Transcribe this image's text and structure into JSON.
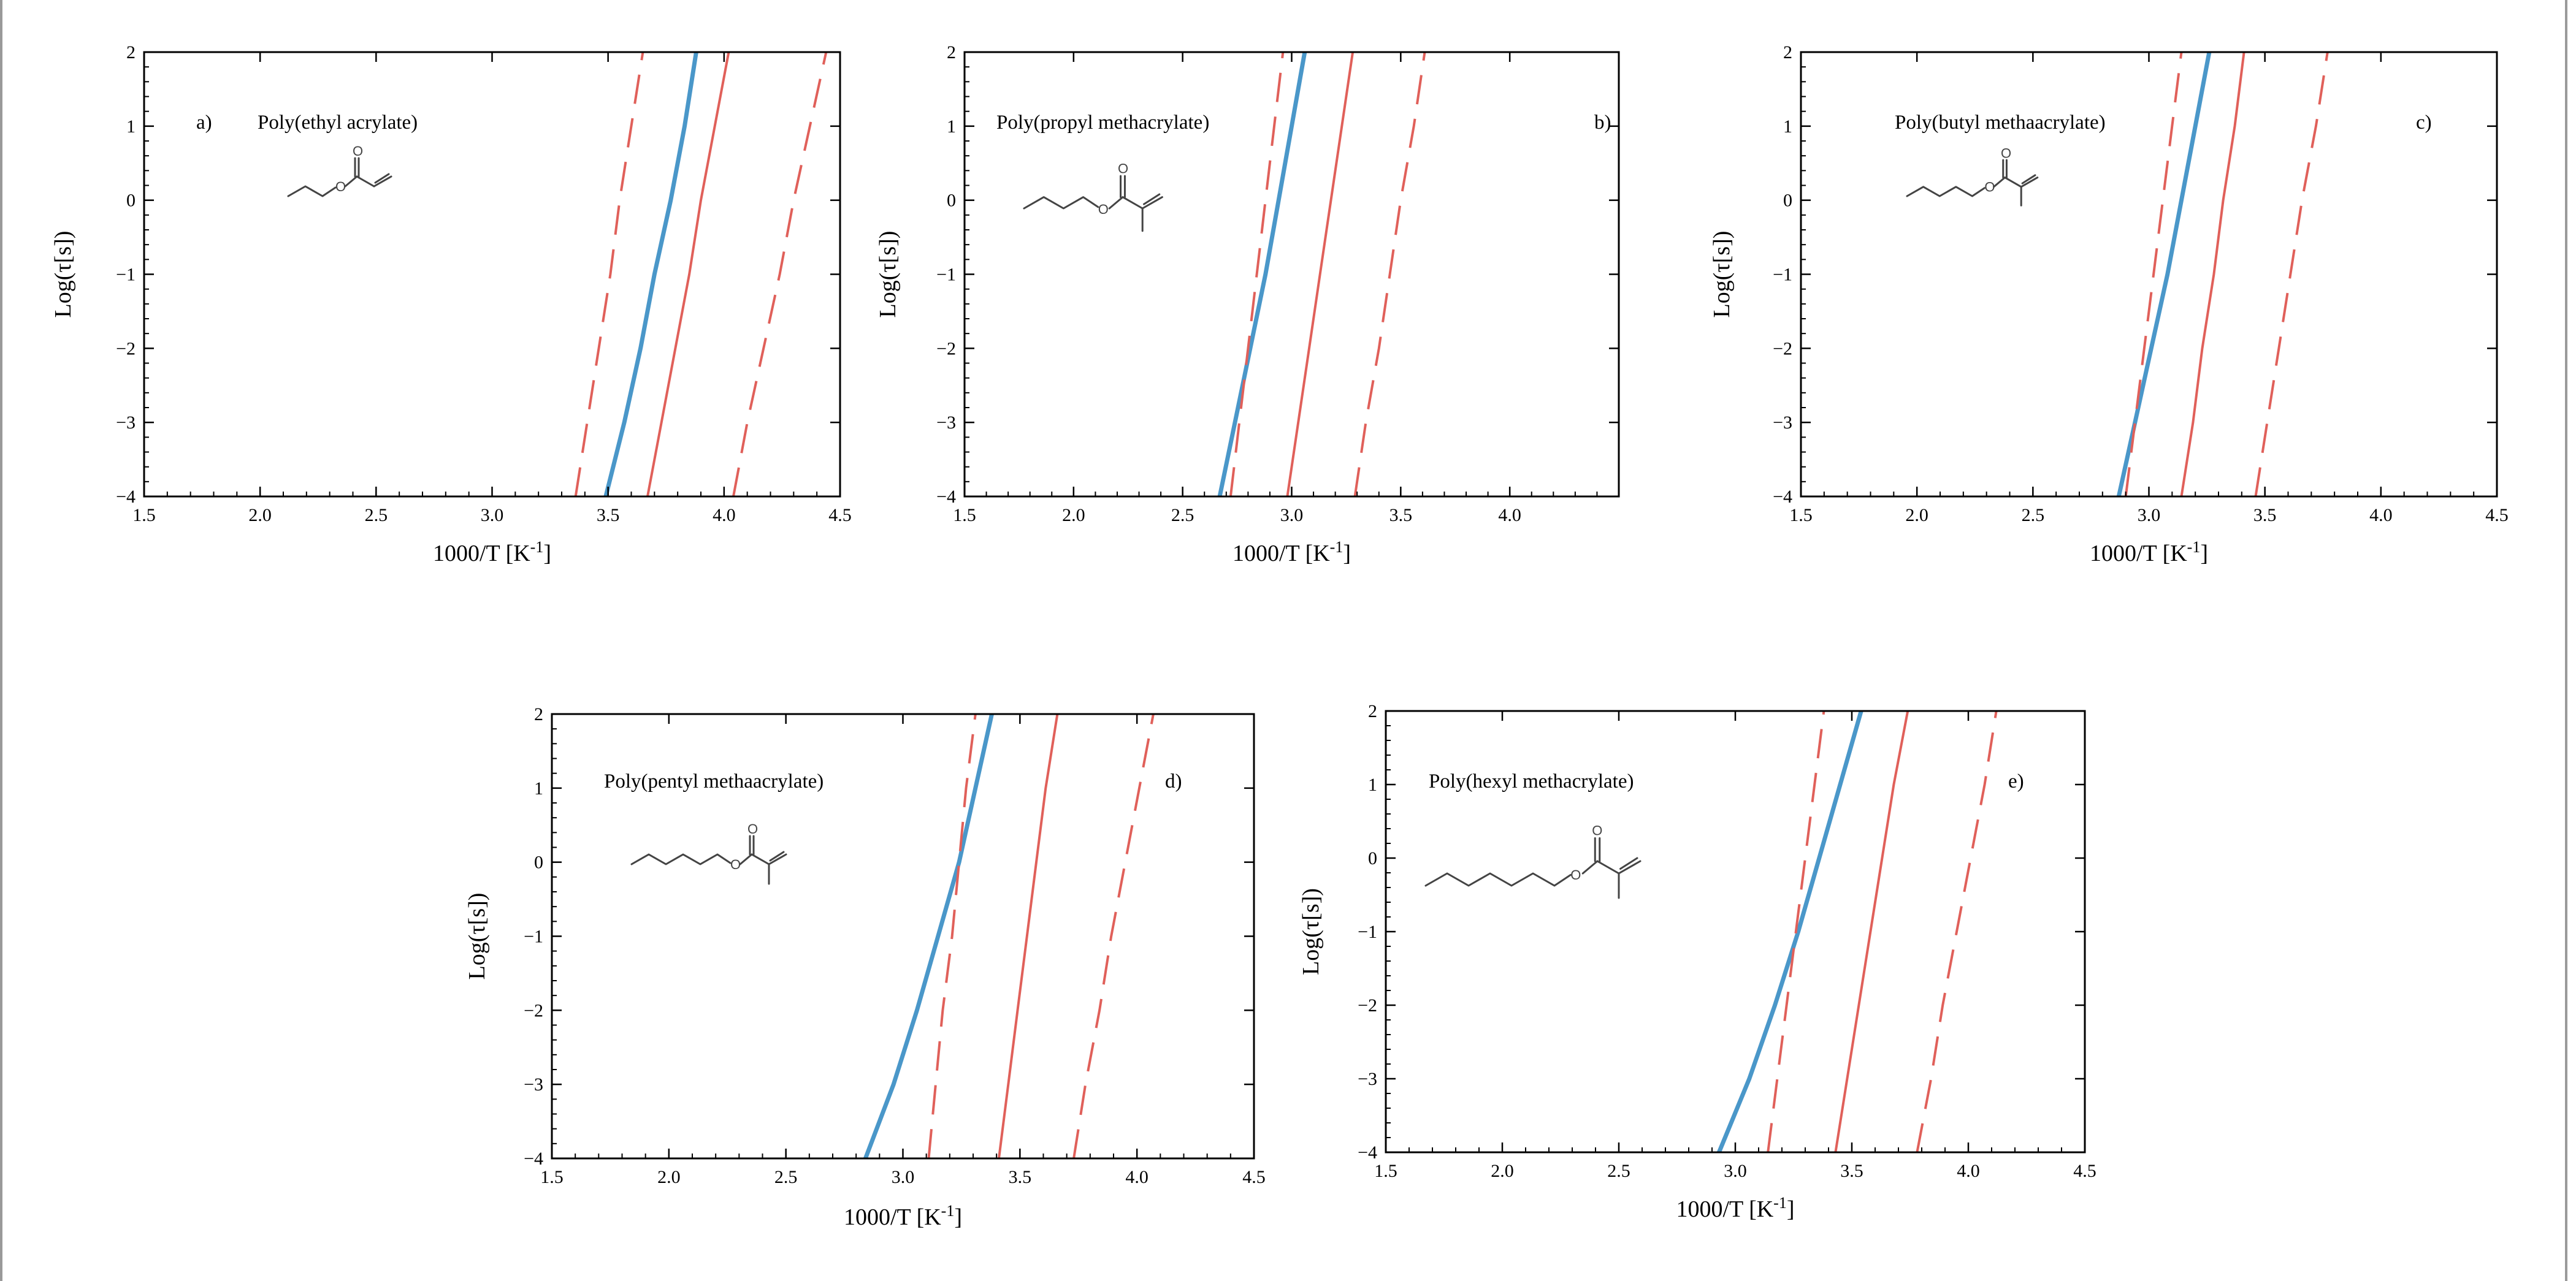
{
  "page": {
    "background": "#ffffff"
  },
  "colors": {
    "model_curve": "#4a97c9",
    "limits": "#e0605a",
    "axes": "#000000"
  },
  "chart_data": [
    {
      "type": "line",
      "panel": "a)",
      "title": "Poly(ethyl acrylate)",
      "xlabel": "1000/T [K",
      "xlabel_sup": "-1",
      "xlabel_close": "]",
      "ylabel": "Log(τ[s])",
      "xlim": [
        1.5,
        4.5
      ],
      "ylim": [
        -4,
        2
      ],
      "xticks": [
        1.5,
        2.0,
        2.5,
        3.0,
        3.5,
        4.0,
        4.5
      ],
      "xtick_labels": [
        "1.5",
        "2.0",
        "2.5",
        "3.0",
        "3.5",
        "4.0",
        "4.5"
      ],
      "yticks": [
        -4,
        -3,
        -2,
        -1,
        0,
        1,
        2
      ],
      "ytick_labels": [
        "−4",
        "−3",
        "−2",
        "−1",
        "0",
        "1",
        "2"
      ],
      "structure": "ethyl acrylate",
      "series": [
        {
          "style": "solid-thick",
          "color": "#4a97c9",
          "x": [
            3.49,
            3.57,
            3.64,
            3.7,
            3.77,
            3.83,
            3.88
          ],
          "y": [
            -4,
            -3,
            -2,
            -1,
            0,
            1,
            2
          ]
        },
        {
          "style": "solid",
          "color": "#e0605a",
          "x": [
            3.67,
            3.73,
            3.79,
            3.85,
            3.9,
            3.96,
            4.02
          ],
          "y": [
            -4,
            -3,
            -2,
            -1,
            0,
            1,
            2
          ]
        },
        {
          "style": "dashed",
          "color": "#e0605a",
          "x": [
            3.36,
            3.41,
            3.46,
            3.51,
            3.55,
            3.6,
            3.65
          ],
          "y": [
            -4,
            -3,
            -2,
            -1,
            0,
            1,
            2
          ]
        },
        {
          "style": "dashed",
          "color": "#e0605a",
          "x": [
            4.04,
            4.1,
            4.17,
            4.24,
            4.3,
            4.37,
            4.44
          ],
          "y": [
            -4,
            -3,
            -2,
            -1,
            0,
            1,
            2
          ]
        }
      ]
    },
    {
      "type": "line",
      "panel": "b)",
      "title": "Poly(propyl methacrylate)",
      "xlabel": "1000/T [K",
      "xlabel_sup": "-1",
      "xlabel_close": "]",
      "ylabel": "Log(τ[s])",
      "xlim": [
        1.5,
        4.5
      ],
      "ylim": [
        -4,
        2
      ],
      "xticks": [
        1.5,
        2.0,
        2.5,
        3.0,
        3.5,
        4.0
      ],
      "xtick_labels": [
        "1.5",
        "2.0",
        "2.5",
        "3.0",
        "3.5",
        "4.0"
      ],
      "yticks": [
        -4,
        -3,
        -2,
        -1,
        0,
        1,
        2
      ],
      "ytick_labels": [
        "−4",
        "−3",
        "−2",
        "−1",
        "0",
        "1",
        "2"
      ],
      "structure": "propyl methacrylate",
      "series": [
        {
          "style": "solid-thick",
          "color": "#4a97c9",
          "x": [
            2.67,
            2.74,
            2.81,
            2.88,
            2.94,
            3.0,
            3.06
          ],
          "y": [
            -4,
            -3,
            -2,
            -1,
            0,
            1,
            2
          ]
        },
        {
          "style": "solid",
          "color": "#e0605a",
          "x": [
            2.98,
            3.03,
            3.08,
            3.13,
            3.18,
            3.23,
            3.28
          ],
          "y": [
            -4,
            -3,
            -2,
            -1,
            0,
            1,
            2
          ]
        },
        {
          "style": "dashed",
          "color": "#e0605a",
          "x": [
            2.72,
            2.76,
            2.8,
            2.84,
            2.88,
            2.92,
            2.96
          ],
          "y": [
            -4,
            -3,
            -2,
            -1,
            0,
            1,
            2
          ]
        },
        {
          "style": "dashed",
          "color": "#e0605a",
          "x": [
            3.29,
            3.34,
            3.4,
            3.45,
            3.5,
            3.56,
            3.61
          ],
          "y": [
            -4,
            -3,
            -2,
            -1,
            0,
            1,
            2
          ]
        }
      ]
    },
    {
      "type": "line",
      "panel": "c)",
      "title": "Poly(butyl methaacrylate)",
      "xlabel": "1000/T [K",
      "xlabel_sup": "-1",
      "xlabel_close": "]",
      "ylabel": "Log(τ[s])",
      "xlim": [
        1.5,
        4.5
      ],
      "ylim": [
        -4,
        2
      ],
      "xticks": [
        1.5,
        2.0,
        2.5,
        3.0,
        3.5,
        4.0,
        4.5
      ],
      "xtick_labels": [
        "1.5",
        "2.0",
        "2.5",
        "3.0",
        "3.5",
        "4.0",
        "4.5"
      ],
      "yticks": [
        -4,
        -3,
        -2,
        -1,
        0,
        1,
        2
      ],
      "ytick_labels": [
        "−4",
        "−3",
        "−2",
        "−1",
        "0",
        "1",
        "2"
      ],
      "structure": "butyl methacrylate",
      "series": [
        {
          "style": "solid-thick",
          "color": "#4a97c9",
          "x": [
            2.87,
            2.94,
            3.01,
            3.08,
            3.14,
            3.2,
            3.26
          ],
          "y": [
            -4,
            -3,
            -2,
            -1,
            0,
            1,
            2
          ]
        },
        {
          "style": "solid",
          "color": "#e0605a",
          "x": [
            3.14,
            3.19,
            3.23,
            3.28,
            3.32,
            3.37,
            3.41
          ],
          "y": [
            -4,
            -3,
            -2,
            -1,
            0,
            1,
            2
          ]
        },
        {
          "style": "dashed",
          "color": "#e0605a",
          "x": [
            2.9,
            2.94,
            2.98,
            3.02,
            3.06,
            3.1,
            3.14
          ],
          "y": [
            -4,
            -3,
            -2,
            -1,
            0,
            1,
            2
          ]
        },
        {
          "style": "dashed",
          "color": "#e0605a",
          "x": [
            3.46,
            3.51,
            3.56,
            3.61,
            3.66,
            3.72,
            3.77
          ],
          "y": [
            -4,
            -3,
            -2,
            -1,
            0,
            1,
            2
          ]
        }
      ]
    },
    {
      "type": "line",
      "panel": "d)",
      "title": "Poly(pentyl methaacrylate)",
      "xlabel": "1000/T [K",
      "xlabel_sup": "-1",
      "xlabel_close": "]",
      "ylabel": "Log(τ[s])",
      "xlim": [
        1.5,
        4.5
      ],
      "ylim": [
        -4,
        2
      ],
      "xticks": [
        1.5,
        2.0,
        2.5,
        3.0,
        3.5,
        4.0,
        4.5
      ],
      "xtick_labels": [
        "1.5",
        "2.0",
        "2.5",
        "3.0",
        "3.5",
        "4.0",
        "4.5"
      ],
      "yticks": [
        -4,
        -3,
        -2,
        -1,
        0,
        1,
        2
      ],
      "ytick_labels": [
        "−4",
        "−3",
        "−2",
        "−1",
        "0",
        "1",
        "2"
      ],
      "structure": "pentyl methacrylate",
      "series": [
        {
          "style": "solid-thick",
          "color": "#4a97c9",
          "x": [
            2.84,
            2.96,
            3.06,
            3.15,
            3.24,
            3.31,
            3.38
          ],
          "y": [
            -4,
            -3,
            -2,
            -1,
            0,
            1,
            2
          ]
        },
        {
          "style": "solid",
          "color": "#e0605a",
          "x": [
            3.41,
            3.45,
            3.49,
            3.53,
            3.57,
            3.61,
            3.66
          ],
          "y": [
            -4,
            -3,
            -2,
            -1,
            0,
            1,
            2
          ]
        },
        {
          "style": "dashed",
          "color": "#e0605a",
          "x": [
            3.11,
            3.14,
            3.17,
            3.21,
            3.24,
            3.27,
            3.31
          ],
          "y": [
            -4,
            -3,
            -2,
            -1,
            0,
            1,
            2
          ]
        },
        {
          "style": "dashed",
          "color": "#e0605a",
          "x": [
            3.73,
            3.78,
            3.84,
            3.89,
            3.95,
            4.01,
            4.07
          ],
          "y": [
            -4,
            -3,
            -2,
            -1,
            0,
            1,
            2
          ]
        }
      ]
    },
    {
      "type": "line",
      "panel": "e)",
      "title": "Poly(hexyl methacrylate)",
      "xlabel": "1000/T [K",
      "xlabel_sup": "-1",
      "xlabel_close": "]",
      "ylabel": "Log(τ[s])",
      "xlim": [
        1.5,
        4.5
      ],
      "ylim": [
        -4,
        2
      ],
      "xticks": [
        1.5,
        2.0,
        2.5,
        3.0,
        3.5,
        4.0,
        4.5
      ],
      "xtick_labels": [
        "1.5",
        "2.0",
        "2.5",
        "3.0",
        "3.5",
        "4.0",
        "4.5"
      ],
      "yticks": [
        -4,
        -3,
        -2,
        -1,
        0,
        1,
        2
      ],
      "ytick_labels": [
        "−4",
        "−3",
        "−2",
        "−1",
        "0",
        "1",
        "2"
      ],
      "structure": "hexyl methacrylate",
      "series": [
        {
          "style": "solid-thick",
          "color": "#4a97c9",
          "x": [
            2.93,
            3.06,
            3.17,
            3.27,
            3.36,
            3.45,
            3.54
          ],
          "y": [
            -4,
            -3,
            -2,
            -1,
            0,
            1,
            2
          ]
        },
        {
          "style": "solid",
          "color": "#e0605a",
          "x": [
            3.43,
            3.48,
            3.53,
            3.58,
            3.63,
            3.68,
            3.74
          ],
          "y": [
            -4,
            -3,
            -2,
            -1,
            0,
            1,
            2
          ]
        },
        {
          "style": "dashed",
          "color": "#e0605a",
          "x": [
            3.14,
            3.18,
            3.22,
            3.26,
            3.3,
            3.34,
            3.38
          ],
          "y": [
            -4,
            -3,
            -2,
            -1,
            0,
            1,
            2
          ]
        },
        {
          "style": "dashed",
          "color": "#e0605a",
          "x": [
            3.78,
            3.84,
            3.89,
            3.95,
            4.01,
            4.07,
            4.12
          ],
          "y": [
            -4,
            -3,
            -2,
            -1,
            0,
            1,
            2
          ]
        }
      ]
    }
  ]
}
